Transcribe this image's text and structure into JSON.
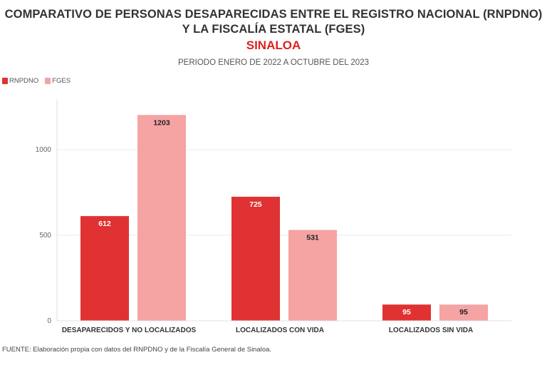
{
  "title": "COMPARATIVO DE PERSONAS DESAPARECIDAS ENTRE EL REGISTRO NACIONAL (RNPDNO) Y LA FISCALÍA ESTATAL (FGES)",
  "region": "SINALOA",
  "period": "PERIODO ENERO DE 2022 A OCTUBRE DEL 2023",
  "source": "FUENTE: Elaboración propia con datos del RNPDNO y de la Fiscalía General de Sinaloa.",
  "colors": {
    "rnpdno": "#E03232",
    "fges": "#F5A3A3",
    "region": "#E02020",
    "grid": "#EBEBEB"
  },
  "chart_data": {
    "type": "bar",
    "title": "COMPARATIVO DE PERSONAS DESAPARECIDAS ENTRE EL REGISTRO NACIONAL (RNPDNO) Y LA FISCALÍA ESTATAL (FGES)",
    "subtitle": "SINALOA",
    "caption": "PERIODO ENERO DE 2022 A OCTUBRE DEL 2023",
    "categories": [
      "DESAPARECIDOS Y NO LOCALIZADOS",
      "LOCALIZADOS CON VIDA",
      "LOCALIZADOS SIN VIDA"
    ],
    "series": [
      {
        "name": "RNPDNO",
        "values": [
          612,
          725,
          95
        ],
        "labels": [
          "612",
          "725",
          "95"
        ]
      },
      {
        "name": "FGES",
        "values": [
          1203,
          531,
          95
        ],
        "labels": [
          "1203",
          "531",
          "95"
        ]
      }
    ],
    "yticks": [
      0,
      500,
      1000
    ],
    "ytick_labels": [
      "0",
      "500",
      "1000"
    ],
    "ylim": [
      0,
      1300
    ],
    "xlabel": "",
    "ylabel": "",
    "grid": true,
    "legend_position": "top-left"
  }
}
